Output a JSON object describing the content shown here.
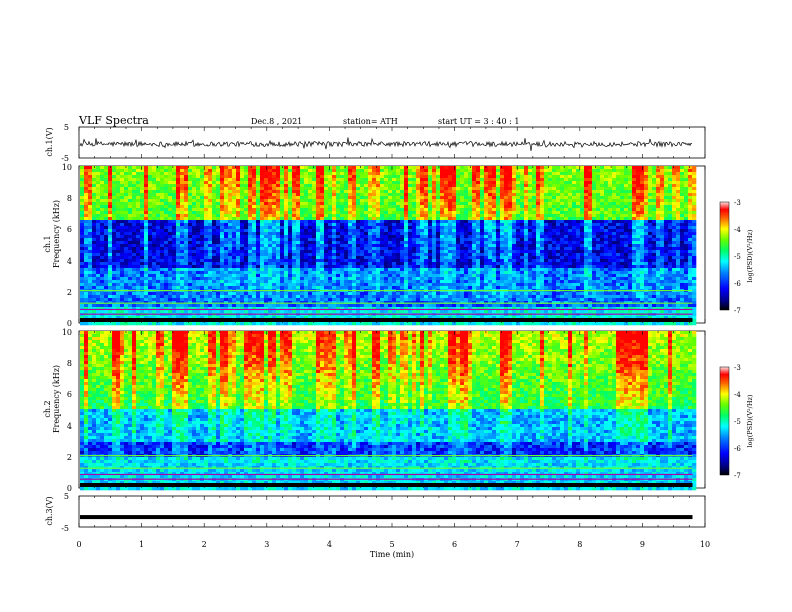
{
  "header": {
    "title": "VLF  Spectra",
    "date": "Dec.8  , 2021",
    "station": "station= ATH",
    "start_ut": "start  UT  =    3  : 40 : 1"
  },
  "chart_data": [
    {
      "type": "line",
      "panel": "ch1-waveform",
      "ylabel": "ch.1(V)",
      "ylim": [
        -5,
        5
      ],
      "yticks": [
        "5",
        "-5"
      ],
      "xlim": [
        0,
        10
      ],
      "data_extent_min": 9.8,
      "baseline": -0.5,
      "amplitude_typical": 0.8
    },
    {
      "type": "heatmap",
      "panel": "ch1-spectrogram",
      "ylabel_line1": "ch.1",
      "ylabel_line2": "Frequency  (kHz)",
      "ylim": [
        0,
        10
      ],
      "yticks": [
        "0",
        "2",
        "4",
        "6",
        "8",
        "10"
      ],
      "xlim": [
        0,
        10
      ],
      "colorbar": {
        "label": "log(PSD)(V²/Hz)",
        "range": [
          -7,
          -3
        ],
        "ticks": [
          "-3",
          "-4",
          "-5",
          "-6",
          "-7"
        ]
      }
    },
    {
      "type": "heatmap",
      "panel": "ch2-spectrogram",
      "ylabel_line1": "ch.2",
      "ylabel_line2": "Frequency  (kHz)",
      "ylim": [
        0,
        10
      ],
      "yticks": [
        "0",
        "2",
        "4",
        "6",
        "8",
        "10"
      ],
      "xlim": [
        0,
        10
      ],
      "colorbar": {
        "label": "log(PSD)(V²/Hz)",
        "range": [
          -7,
          -3
        ],
        "ticks": [
          "-3",
          "-4",
          "-5",
          "-6",
          "-7"
        ]
      }
    },
    {
      "type": "line",
      "panel": "ch3-waveform",
      "ylabel": "ch.3(V)",
      "ylim": [
        -5,
        5
      ],
      "yticks": [
        "5",
        "-5"
      ],
      "xlim": [
        0,
        10
      ],
      "xticks": [
        "0",
        "1",
        "2",
        "3",
        "4",
        "5",
        "6",
        "7",
        "8",
        "9",
        "10"
      ],
      "xlabel": "Time  (min)",
      "constant_value": -1.8
    }
  ],
  "colors": {
    "waveform": "#000000",
    "colormap": [
      "#000000",
      "#0000aa",
      "#0044ff",
      "#00aaff",
      "#00ffcc",
      "#33ff33",
      "#ccff00",
      "#ffaa00",
      "#ff0000",
      "#ffdddd"
    ]
  }
}
